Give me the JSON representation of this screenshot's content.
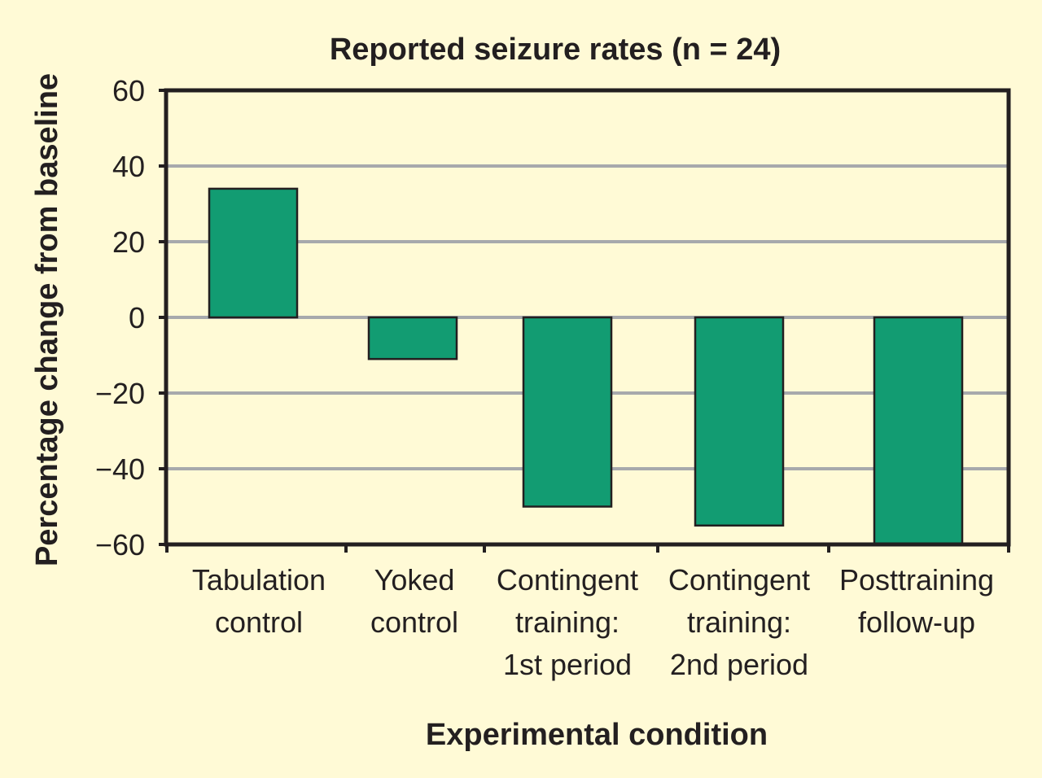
{
  "chart_data": {
    "type": "bar",
    "title": "Reported seizure rates (n = 24)",
    "xlabel": "Experimental condition",
    "ylabel": "Percentage change from baseline",
    "categories": [
      "Tabulation control",
      "Yoked control",
      "Contingent training: 1st period",
      "Contingent training: 2nd period",
      "Posttraining follow-up"
    ],
    "category_lines": [
      [
        "Tabulation",
        "control"
      ],
      [
        "Yoked",
        "control"
      ],
      [
        "Contingent",
        "training:",
        "1st period"
      ],
      [
        "Contingent",
        "training:",
        "2nd period"
      ],
      [
        "Posttraining",
        "follow-up"
      ]
    ],
    "values": [
      34,
      -11,
      -50,
      -55,
      -60
    ],
    "ylim": [
      -60,
      60
    ],
    "yticks": [
      60,
      40,
      20,
      0,
      -20,
      -40,
      -60
    ],
    "ytick_labels": [
      "60",
      "40",
      "20",
      "0",
      "−20",
      "−40",
      "−60"
    ],
    "grid": true,
    "colors": {
      "background": "#fffad6",
      "bar_fill": "#129c72",
      "bar_stroke": "#231f20",
      "grid": "#a7a9ac",
      "axis": "#231f20"
    }
  }
}
